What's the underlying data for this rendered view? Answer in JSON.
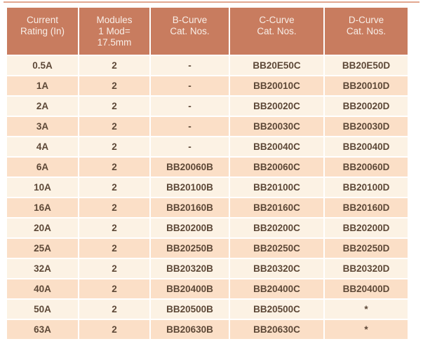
{
  "table": {
    "columns": [
      {
        "label": "Current\nRating (In)"
      },
      {
        "label": "Modules\n1 Mod=\n17.5mm"
      },
      {
        "label": "B-Curve\nCat. Nos."
      },
      {
        "label": "C-Curve\nCat. Nos."
      },
      {
        "label": "D-Curve\nCat. Nos."
      }
    ],
    "rows": [
      {
        "cells": [
          "0.5A",
          "2",
          "-",
          "BB20E50C",
          "BB20E50D"
        ]
      },
      {
        "cells": [
          "1A",
          "2",
          "-",
          "BB20010C",
          "BB20010D"
        ]
      },
      {
        "cells": [
          "2A",
          "2",
          "-",
          "BB20020C",
          "BB20020D"
        ]
      },
      {
        "cells": [
          "3A",
          "2",
          "-",
          "BB20030C",
          "BB20030D"
        ]
      },
      {
        "cells": [
          "4A",
          "2",
          "-",
          "BB20040C",
          "BB20040D"
        ]
      },
      {
        "cells": [
          "6A",
          "2",
          "BB20060B",
          "BB20060C",
          "BB20060D"
        ]
      },
      {
        "cells": [
          "10A",
          "2",
          "BB20100B",
          "BB20100C",
          "BB20100D"
        ]
      },
      {
        "cells": [
          "16A",
          "2",
          "BB20160B",
          "BB20160C",
          "BB20160D"
        ]
      },
      {
        "cells": [
          "20A",
          "2",
          "BB20200B",
          "BB20200C",
          "BB20200D"
        ]
      },
      {
        "cells": [
          "25A",
          "2",
          "BB20250B",
          "BB20250C",
          "BB20250D"
        ]
      },
      {
        "cells": [
          "32A",
          "2",
          "BB20320B",
          "BB20320C",
          "BB20320D"
        ]
      },
      {
        "cells": [
          "40A",
          "2",
          "BB20400B",
          "BB20400C",
          "BB20400D"
        ]
      },
      {
        "cells": [
          "50A",
          "2",
          "BB20500B",
          "BB20500C",
          "*"
        ]
      },
      {
        "cells": [
          "63A",
          "2",
          "BB20630B",
          "BB20630C",
          "*"
        ]
      }
    ]
  },
  "colors": {
    "header_bg": "#C87C5F",
    "header_text": "#F8EEE7",
    "row_light": "#FCF2E4",
    "row_dark": "#FBDFC7",
    "body_text": "#5D4837",
    "top_line": "#E2A78F"
  }
}
